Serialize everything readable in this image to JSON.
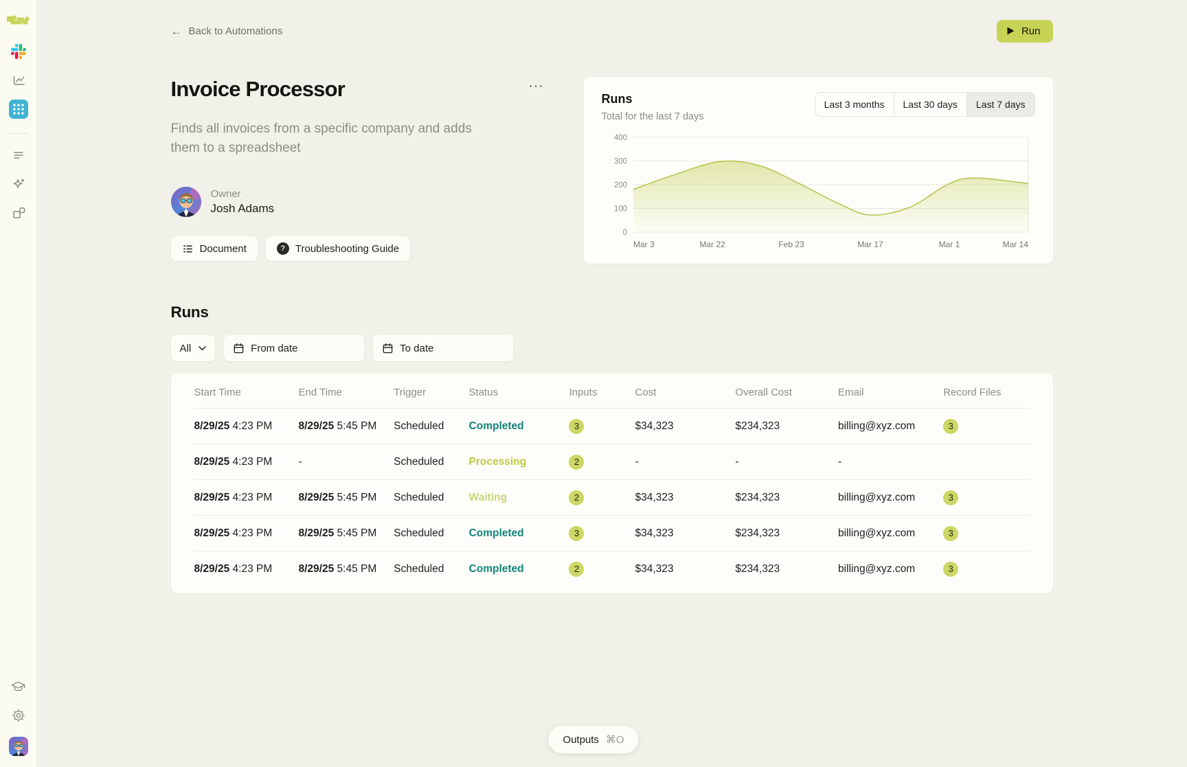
{
  "colors": {
    "accent_green": "#c6d355",
    "badge_green": "#ccd766",
    "status_completed": "#13857b",
    "status_processing": "#c0ca45",
    "status_waiting": "#cbd679",
    "active_app_teal": "#3fb5d3",
    "chart_line": "#b9c551"
  },
  "icons": {
    "back_arrow": "←",
    "more_glyph": "···",
    "question_mark": "?"
  },
  "header": {
    "back_label": "Back to Automations",
    "run_label": "Run"
  },
  "automation": {
    "title": "Invoice Processor",
    "description": "Finds all invoices from a specific company and adds them to a spreadsheet",
    "owner_label": "Owner",
    "owner_name": "Josh Adams",
    "doc_button": "Document",
    "guide_button": "Troubleshooting Guide"
  },
  "chart_card": {
    "title": "Runs",
    "subtitle": "Total for the last 7 days",
    "range_options": [
      "Last 3 months",
      "Last 30 days",
      "Last 7 days"
    ],
    "selected_range": "Last 7 days"
  },
  "chart_data": {
    "type": "area",
    "title": "Runs",
    "subtitle": "Total for the last 7 days",
    "x_tick_labels": [
      "Mar 3",
      "Mar 22",
      "Feb 23",
      "Mar 17",
      "Mar 1",
      "Mar 14"
    ],
    "y_ticks": [
      0,
      100,
      200,
      300,
      400
    ],
    "ylim": [
      0,
      400
    ],
    "grid": true,
    "legend_position": "none",
    "series": [
      {
        "name": "Runs",
        "smooth": true,
        "points": [
          [
            0.0,
            180
          ],
          [
            0.1,
            240
          ],
          [
            0.22,
            298
          ],
          [
            0.32,
            280
          ],
          [
            0.42,
            205
          ],
          [
            0.52,
            120
          ],
          [
            0.6,
            72
          ],
          [
            0.7,
            105
          ],
          [
            0.8,
            205
          ],
          [
            0.87,
            228
          ],
          [
            1.0,
            205
          ]
        ]
      }
    ],
    "line_color": "#b9c551",
    "fill_top": "rgba(197,210,92,0.5)",
    "fill_bottom": "rgba(197,210,92,0.02)"
  },
  "runs": {
    "title": "Runs",
    "filters": {
      "status_value": "All",
      "from_placeholder": "From date",
      "to_placeholder": "To date"
    },
    "table": {
      "headers": [
        "Start Time",
        "End Time",
        "Trigger",
        "Status",
        "Inputs",
        "Cost",
        "Overall Cost",
        "Email",
        "Record Files"
      ],
      "rows": [
        {
          "start_date": "8/29/25",
          "start_time": "4:23 PM",
          "end_date": "8/29/25",
          "end_time": "5:45 PM",
          "trigger": "Scheduled",
          "status": "Completed",
          "status_color": "#13857b",
          "inputs": "3",
          "cost": "$34,323",
          "overall_cost": "$234,323",
          "email": "billing@xyz.com",
          "record_files": "3"
        },
        {
          "start_date": "8/29/25",
          "start_time": "4:23 PM",
          "end_date": "-",
          "end_time": "",
          "trigger": "Scheduled",
          "status": "Processing",
          "status_color": "#c0ca45",
          "inputs": "2",
          "cost": "-",
          "overall_cost": "-",
          "email": "-",
          "record_files": ""
        },
        {
          "start_date": "8/29/25",
          "start_time": "4:23 PM",
          "end_date": "8/29/25",
          "end_time": "5:45 PM",
          "trigger": "Scheduled",
          "status": "Waiting",
          "status_color": "#cbd679",
          "inputs": "2",
          "cost": "$34,323",
          "overall_cost": "$234,323",
          "email": "billing@xyz.com",
          "record_files": "3"
        },
        {
          "start_date": "8/29/25",
          "start_time": "4:23 PM",
          "end_date": "8/29/25",
          "end_time": "5:45 PM",
          "trigger": "Scheduled",
          "status": "Completed",
          "status_color": "#13857b",
          "inputs": "3",
          "cost": "$34,323",
          "overall_cost": "$234,323",
          "email": "billing@xyz.com",
          "record_files": "3"
        },
        {
          "start_date": "8/29/25",
          "start_time": "4:23 PM",
          "end_date": "8/29/25",
          "end_time": "5:45 PM",
          "trigger": "Scheduled",
          "status": "Completed",
          "status_color": "#13857b",
          "inputs": "2",
          "cost": "$34,323",
          "overall_cost": "$234,323",
          "email": "billing@xyz.com",
          "record_files": "3"
        }
      ]
    }
  },
  "footer": {
    "outputs_label": "Outputs",
    "shortcut": "⌘O"
  }
}
